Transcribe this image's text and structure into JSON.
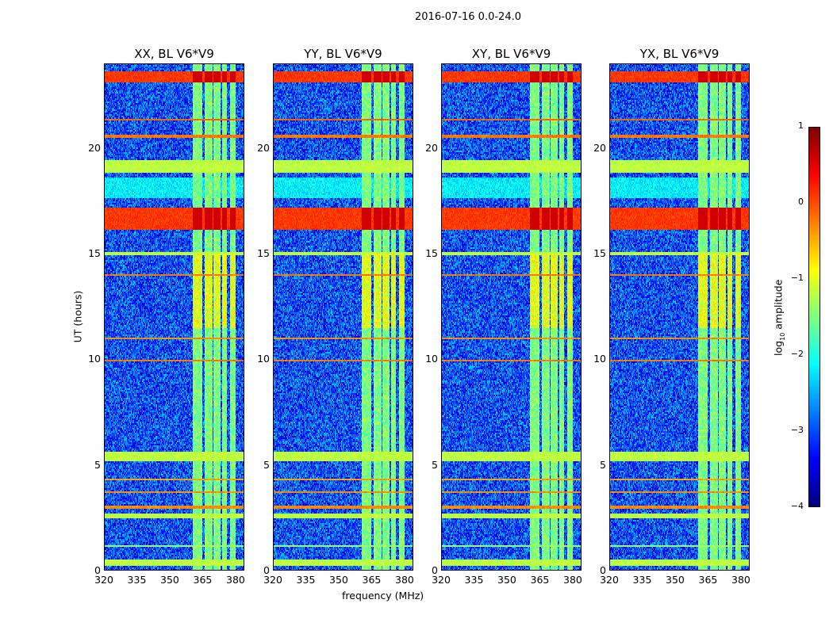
{
  "suptitle": "2016-07-16 0.0-24.0",
  "chart_data": {
    "type": "heatmap",
    "title": "2016-07-16 0.0-24.0",
    "xlabel": "frequency (MHz)",
    "ylabel": "UT (hours)",
    "xlim": [
      320,
      384
    ],
    "ylim": [
      0,
      24
    ],
    "xticks": [
      "320",
      "335",
      "350",
      "365",
      "380"
    ],
    "xtick_values": [
      320,
      335,
      350,
      365,
      380
    ],
    "yticks": [
      "0",
      "5",
      "10",
      "15",
      "20"
    ],
    "ytick_values": [
      0,
      5,
      10,
      15,
      20
    ],
    "panels": [
      {
        "title": "XX, BL V6*V9"
      },
      {
        "title": "YY, BL V6*V9"
      },
      {
        "title": "XY, BL V6*V9"
      },
      {
        "title": "YX, BL V6*V9"
      }
    ],
    "background_log_amplitude": -3.0,
    "horizontal_bands": [
      {
        "ut": [
          0.2,
          0.5
        ],
        "value": -1.2
      },
      {
        "ut": [
          1.1,
          1.2
        ],
        "value": -1.4
      },
      {
        "ut": [
          2.5,
          2.7
        ],
        "value": -1.2
      },
      {
        "ut": [
          2.9,
          3.05
        ],
        "value": -0.3
      },
      {
        "ut": [
          3.65,
          3.75
        ],
        "value": -0.3
      },
      {
        "ut": [
          4.25,
          4.35
        ],
        "value": -0.4
      },
      {
        "ut": [
          5.2,
          5.6
        ],
        "value": -1.2
      },
      {
        "ut": [
          9.9,
          10.0
        ],
        "value": -0.2
      },
      {
        "ut": [
          10.95,
          11.05
        ],
        "value": -0.3
      },
      {
        "ut": [
          13.95,
          14.05
        ],
        "value": -0.2
      },
      {
        "ut": [
          14.9,
          15.1
        ],
        "value": -1.2
      },
      {
        "ut": [
          16.1,
          17.2
        ],
        "value": 0.1
      },
      {
        "ut": [
          18.8,
          19.4
        ],
        "value": -1.2
      },
      {
        "ut": [
          20.5,
          20.65
        ],
        "value": -0.2
      },
      {
        "ut": [
          21.3,
          21.4
        ],
        "value": -0.1
      },
      {
        "ut": [
          23.1,
          23.6
        ],
        "value": 0.1
      }
    ],
    "rfi_channels_mhz": [
      [
        360.5,
        365
      ],
      [
        366,
        369.5
      ],
      [
        370,
        373
      ],
      [
        374,
        376
      ],
      [
        377.5,
        380
      ]
    ],
    "rfi_value": -1.5,
    "colorbar": {
      "label": "log10 amplitude",
      "range": [
        -4,
        1
      ],
      "ticks": [
        "1",
        "0",
        "−1",
        "−2",
        "−3",
        "−4"
      ],
      "tick_values": [
        1,
        0,
        -1,
        -2,
        -3,
        -4
      ],
      "colormap": "jet"
    }
  }
}
